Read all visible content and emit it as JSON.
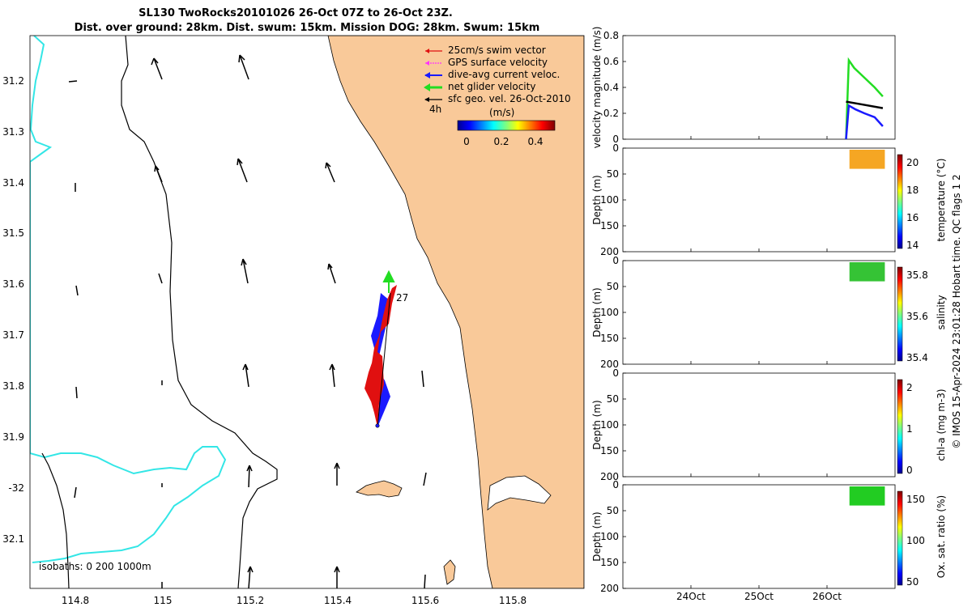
{
  "title": {
    "line1": "SL130 TwoRocks20101026 26-Oct 07Z to 26-Oct 23Z.",
    "line2": "Dist. over ground: 28km. Dist. swum: 15km. Mission DOG: 28km. Swum: 15km"
  },
  "colors": {
    "land": "#f9c999",
    "coast_shallow": "#33e6e6",
    "swim": "#e01010",
    "gps": "#ff33ff",
    "current": "#1a1aff",
    "net": "#22dd22",
    "geo": "#000000"
  },
  "map": {
    "lon_ticks": [
      "114.8",
      "115",
      "115.2",
      "115.4",
      "115.6",
      "115.8"
    ],
    "lat_ticks": [
      "31.2",
      "31.3",
      "31.4",
      "31.5",
      "31.6",
      "31.7",
      "31.8",
      "31.9",
      "-32",
      "32.1"
    ],
    "legend": [
      {
        "label": "25cm/s swim vector",
        "color": "#e01010"
      },
      {
        "label": "GPS surface velocity",
        "color": "#ff33ff"
      },
      {
        "label": "dive-avg current veloc.",
        "color": "#1a1aff"
      },
      {
        "label": "net glider velocity",
        "color": "#22dd22"
      },
      {
        "label": "sfc geo. vel. 26-Oct-2010",
        "color": "#000000"
      }
    ],
    "legend_4h": "4h",
    "colorbar_unit": "(m/s)",
    "colorbar_ticks": [
      "0",
      "0.2",
      "0.4"
    ],
    "track_label": "27",
    "isobaths_label": "isobaths: 0   200  1000m"
  },
  "chart_data": [
    {
      "type": "line",
      "ylabel": "velocity magnitude (m/s)",
      "ylim": [
        0,
        0.8
      ],
      "yticks": [
        "0",
        "0.2",
        "0.4",
        "0.6",
        "0.8"
      ],
      "series": [
        {
          "name": "net glider velocity",
          "color": "#22dd22",
          "values": [
            [
              26.28,
              0.0
            ],
            [
              26.32,
              0.61
            ],
            [
              26.4,
              0.55
            ],
            [
              26.5,
              0.5
            ],
            [
              26.6,
              0.45
            ],
            [
              26.7,
              0.4
            ],
            [
              26.82,
              0.33
            ]
          ]
        },
        {
          "name": "dive-avg current veloc.",
          "color": "#1a1aff",
          "values": [
            [
              26.28,
              0.0
            ],
            [
              26.32,
              0.26
            ],
            [
              26.42,
              0.23
            ],
            [
              26.55,
              0.2
            ],
            [
              26.7,
              0.17
            ],
            [
              26.82,
              0.1
            ]
          ]
        },
        {
          "name": "sfc geo. vel. 26-Oct-2010",
          "color": "#000000",
          "values": [
            [
              26.28,
              0.29
            ],
            [
              26.5,
              0.27
            ],
            [
              26.82,
              0.24
            ]
          ]
        }
      ]
    },
    {
      "type": "heatmap",
      "ylabel": "Depth (m)",
      "cbar_label": "temperature (°C)",
      "cbar_ticks": [
        "14",
        "16",
        "18",
        "20"
      ],
      "ylim": [
        200,
        0
      ],
      "yticks": [
        "0",
        "50",
        "100",
        "150",
        "200"
      ],
      "data_color": "#f5a623",
      "x_range": [
        26.33,
        26.85
      ],
      "depth_range": [
        0,
        40
      ]
    },
    {
      "type": "heatmap",
      "ylabel": "Depth (m)",
      "cbar_label": "salinity",
      "cbar_ticks": [
        "35.4",
        "35.6",
        "35.8"
      ],
      "ylim": [
        200,
        0
      ],
      "yticks": [
        "0",
        "50",
        "100",
        "150",
        "200"
      ],
      "data_color": "#35c335",
      "x_range": [
        26.33,
        26.85
      ],
      "depth_range": [
        0,
        40
      ]
    },
    {
      "type": "heatmap",
      "ylabel": "Depth (m)",
      "cbar_label": "chl-a (mg m-3)",
      "cbar_ticks": [
        "0",
        "1",
        "2"
      ],
      "ylim": [
        200,
        0
      ],
      "yticks": [
        "0",
        "50",
        "100",
        "150",
        "200"
      ],
      "data_color": null
    },
    {
      "type": "heatmap",
      "ylabel": "Depth (m)",
      "cbar_label": "Ox. sat. ratio (%)",
      "cbar_ticks": [
        "50",
        "100",
        "150"
      ],
      "ylim": [
        200,
        0
      ],
      "yticks": [
        "0",
        "50",
        "100",
        "150",
        "200"
      ],
      "xticks": [
        "24Oct",
        "25Oct",
        "26Oct"
      ],
      "data_color": "#22cc22",
      "x_range": [
        26.33,
        26.85
      ],
      "depth_range": [
        0,
        40
      ]
    }
  ],
  "footer": "© IMOS 15-Apr-2024 23:01:28 Hobart time. QC flags 1  2"
}
